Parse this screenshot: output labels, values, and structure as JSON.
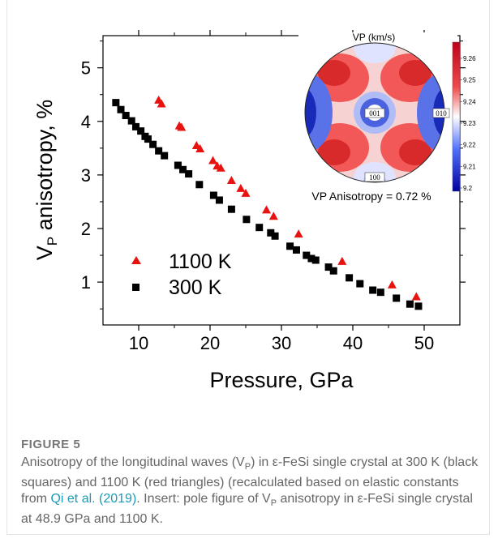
{
  "chart_data": {
    "type": "scatter",
    "xlabel": "Pressure, GPa",
    "ylabel_main": "V",
    "ylabel_sub": "P",
    "ylabel_rest": " anisotropy, %",
    "xlim": [
      5,
      55
    ],
    "ylim": [
      0.2,
      5.6
    ],
    "xticks": [
      10,
      20,
      30,
      40,
      50
    ],
    "yticks": [
      1,
      2,
      3,
      4,
      5
    ],
    "legend_placement": "bottom-left",
    "series": [
      {
        "name": "1100 K",
        "marker": "triangle",
        "color": "#e8130f",
        "x": [
          12.8,
          13.2,
          15.7,
          16.0,
          18.1,
          18.6,
          20.4,
          21.0,
          21.5,
          23.0,
          24.3,
          25.0,
          27.9,
          28.9,
          32.4,
          38.5,
          45.5,
          48.9
        ],
        "y": [
          4.4,
          4.33,
          3.92,
          3.89,
          3.55,
          3.49,
          3.27,
          3.17,
          3.13,
          2.9,
          2.75,
          2.66,
          2.35,
          2.23,
          1.9,
          1.39,
          0.95,
          0.73
        ]
      },
      {
        "name": "300 K",
        "marker": "square",
        "color": "#000000",
        "x": [
          6.8,
          7.5,
          8.2,
          9.0,
          9.6,
          10.3,
          10.9,
          11.3,
          12.0,
          12.8,
          13.6,
          15.5,
          16.2,
          17.0,
          18.5,
          20.5,
          21.3,
          23.0,
          25.1,
          26.9,
          28.5,
          29.1,
          31.2,
          32.1,
          33.5,
          34.2,
          34.8,
          36.6,
          37.3,
          39.5,
          41.0,
          42.8,
          43.9,
          46.1,
          48.0,
          49.2
        ],
        "y": [
          4.35,
          4.22,
          4.11,
          4.01,
          3.9,
          3.82,
          3.72,
          3.67,
          3.57,
          3.45,
          3.36,
          3.18,
          3.1,
          3.02,
          2.82,
          2.62,
          2.53,
          2.36,
          2.17,
          2.02,
          1.92,
          1.86,
          1.67,
          1.6,
          1.5,
          1.44,
          1.41,
          1.28,
          1.21,
          1.08,
          0.97,
          0.85,
          0.81,
          0.7,
          0.59,
          0.55
        ]
      }
    ],
    "inset": {
      "title": "VP (km/s)",
      "bottom_label": "VP Anisotropy = 0.72 %",
      "labels": [
        "001",
        "010",
        "100"
      ],
      "colorbar_ticks": [
        "9.26",
        "9.25",
        "9.24",
        "9.23",
        "9.22",
        "9.21",
        "9.2"
      ],
      "colorbar_range": [
        9.2,
        9.265
      ]
    }
  },
  "caption": {
    "label": "FIGURE 5",
    "text_1": "Anisotropy of the longitudinal waves (V",
    "sub_1": "P",
    "text_2": ") in ε-FeSi single crystal at 300 K (black squares) and 1100 K (red triangles) (recalculated based on elastic constants from ",
    "link": "Qi et al. (2019)",
    "text_3": ". Insert: pole figure of V",
    "sub_2": "P",
    "text_4": " anisotropy in ε-FeSi single crystal at 48.9 GPa and 1100 K."
  }
}
